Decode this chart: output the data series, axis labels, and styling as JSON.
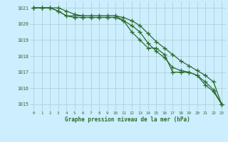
{
  "title": "Graphe pression niveau de la mer (hPa)",
  "bg_color": "#cceeff",
  "plot_bg_color": "#cceeff",
  "grid_color": "#aacccc",
  "line_color": "#2d6b2d",
  "marker_color": "#2d6b2d",
  "xlim": [
    -0.5,
    23.5
  ],
  "ylim": [
    1014.6,
    1021.4
  ],
  "yticks": [
    1015,
    1016,
    1017,
    1018,
    1019,
    1020,
    1021
  ],
  "xticks": [
    0,
    1,
    2,
    3,
    4,
    5,
    6,
    7,
    8,
    9,
    10,
    11,
    12,
    13,
    14,
    15,
    16,
    17,
    18,
    19,
    20,
    21,
    22,
    23
  ],
  "series1": [
    1021.0,
    1021.0,
    1021.0,
    1021.0,
    1020.8,
    1020.6,
    1020.5,
    1020.5,
    1020.5,
    1020.5,
    1020.5,
    1020.2,
    1019.5,
    1019.0,
    1018.5,
    1018.5,
    1018.1,
    1017.0,
    1017.0,
    1017.0,
    1016.8,
    1016.2,
    1015.8,
    1015.0
  ],
  "series2": [
    1021.0,
    1021.0,
    1021.0,
    1020.8,
    1020.5,
    1020.5,
    1020.5,
    1020.5,
    1020.5,
    1020.5,
    1020.5,
    1020.4,
    1020.2,
    1019.9,
    1019.4,
    1018.9,
    1018.5,
    1018.1,
    1017.7,
    1017.4,
    1017.1,
    1016.8,
    1016.4,
    1015.0
  ],
  "series3": [
    1021.0,
    1021.0,
    1021.0,
    1020.8,
    1020.5,
    1020.4,
    1020.4,
    1020.4,
    1020.4,
    1020.4,
    1020.4,
    1020.2,
    1019.9,
    1019.5,
    1018.8,
    1018.3,
    1017.9,
    1017.3,
    1017.1,
    1017.0,
    1016.8,
    1016.4,
    1015.9,
    1015.0
  ]
}
